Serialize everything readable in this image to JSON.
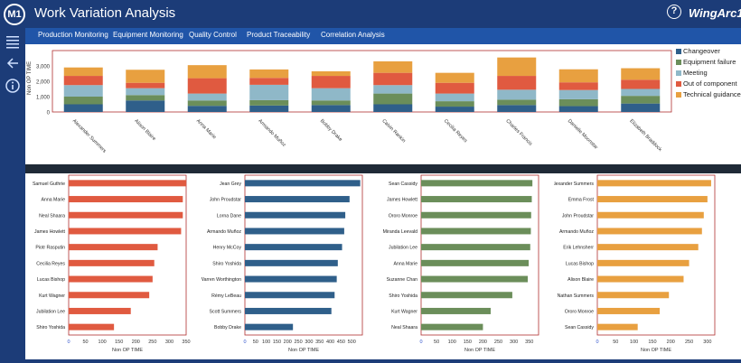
{
  "app": {
    "logo_text": "M1",
    "title": "Work Variation Analysis",
    "help_glyph": "?",
    "brand": "WingArc1st"
  },
  "nav": {
    "tabs": [
      {
        "label": "Production Monitoring"
      },
      {
        "label": "Equipment Monitoring"
      },
      {
        "label": "Quality Control"
      },
      {
        "label": "Product Traceability"
      },
      {
        "label": "Correlation Analysis"
      }
    ]
  },
  "sidebar": {
    "icons": [
      "menu-icon",
      "back-arrow-icon",
      "info-icon"
    ]
  },
  "chart_data": [
    {
      "type": "bar",
      "stacked": true,
      "ylabel": "Non OP TIME",
      "ylim": [
        0,
        4000
      ],
      "yticks": [
        "3,000",
        "2,000",
        "1,000",
        "0"
      ],
      "categories": [
        "Alexander Summers",
        "Alison Blaire",
        "Anna Marie",
        "Armando Muñoz",
        "Bobby Drake",
        "Calvin Rankin",
        "Cecilia Reyes",
        "Charles Francis",
        "Danielle Moonstar",
        "Elizabeth Braddock"
      ],
      "legend_position": "right",
      "series": [
        {
          "name": "Changeover",
          "color": "#2f5f8a",
          "values": [
            500,
            750,
            400,
            420,
            450,
            500,
            350,
            450,
            380,
            550
          ]
        },
        {
          "name": "Equipment failure",
          "color": "#6b8e5a",
          "values": [
            500,
            350,
            350,
            350,
            300,
            700,
            350,
            350,
            450,
            500
          ]
        },
        {
          "name": "Meeting",
          "color": "#8fb8c8",
          "values": [
            750,
            450,
            450,
            1000,
            800,
            550,
            500,
            650,
            600,
            450
          ]
        },
        {
          "name": "Out of component",
          "color": "#e05a40",
          "values": [
            600,
            350,
            1000,
            450,
            800,
            800,
            700,
            900,
            500,
            600
          ]
        },
        {
          "name": "Technical guidance",
          "color": "#e8a040",
          "values": [
            550,
            850,
            850,
            550,
            300,
            750,
            650,
            1200,
            850,
            750
          ]
        }
      ]
    },
    {
      "type": "bar",
      "orientation": "horizontal",
      "color": "#e05a40",
      "xlabel": "Non OP TIME",
      "xlim": [
        0,
        350
      ],
      "xticks": [
        "0",
        "50",
        "100",
        "150",
        "200",
        "250",
        "300",
        "350"
      ],
      "categories": [
        "Samuel Guthrie",
        "Anna Marie",
        "Neal Shaara",
        "James Howlett",
        "Piotr Rasputin",
        "Cecilia Reyes",
        "Lucas Bishop",
        "Kurt Wagner",
        "Jubilation Lee",
        "Shiro Yoshida"
      ],
      "values": [
        350,
        340,
        340,
        335,
        265,
        255,
        250,
        240,
        185,
        135
      ]
    },
    {
      "type": "bar",
      "orientation": "horizontal",
      "color": "#2f5f8a",
      "xlabel": "Non OP TIME",
      "xlim": [
        0,
        550
      ],
      "xticks": [
        "0",
        "50",
        "100",
        "150",
        "200",
        "250",
        "300",
        "350",
        "400",
        "450",
        "500"
      ],
      "categories": [
        "Jean Grey",
        "John Proudstar",
        "Lorna Dane",
        "Armando Muñoz",
        "Henry McCoy",
        "Shiro Yoshida",
        "Warren Worthington",
        "Rémy LeBeau",
        "Scott Summers",
        "Bobby Drake"
      ],
      "values": [
        540,
        490,
        470,
        465,
        455,
        435,
        430,
        420,
        405,
        225
      ]
    },
    {
      "type": "bar",
      "orientation": "horizontal",
      "color": "#6b8e5a",
      "xlabel": "Non OP TIME",
      "xlim": [
        0,
        380
      ],
      "xticks": [
        "0",
        "50",
        "100",
        "150",
        "200",
        "250",
        "300",
        "350"
      ],
      "categories": [
        "Sean Cassidy",
        "James Howlett",
        "Ororo Monroe",
        "Miranda Leevald",
        "Jubilation Lee",
        "Anna Marie",
        "Suzanne Chan",
        "Shiro Yoshida",
        "Kurt Wagner",
        "Neal Shaara"
      ],
      "values": [
        360,
        358,
        356,
        355,
        353,
        348,
        345,
        295,
        225,
        200
      ]
    },
    {
      "type": "bar",
      "orientation": "horizontal",
      "color": "#e8a040",
      "xlabel": "Non OP TIME",
      "xlim": [
        0,
        320
      ],
      "xticks": [
        "0",
        "50",
        "100",
        "150",
        "200",
        "250",
        "300"
      ],
      "categories": [
        "Alexander Summers",
        "Emma Frost",
        "John Proudstar",
        "Armando Muñoz",
        "Erik Lehnsherr",
        "Lucas Bishop",
        "Alison Blaire",
        "Nathan Summers",
        "Ororo Monroe",
        "Sean Cassidy"
      ],
      "values": [
        310,
        300,
        290,
        285,
        275,
        250,
        235,
        195,
        170,
        110
      ]
    }
  ]
}
